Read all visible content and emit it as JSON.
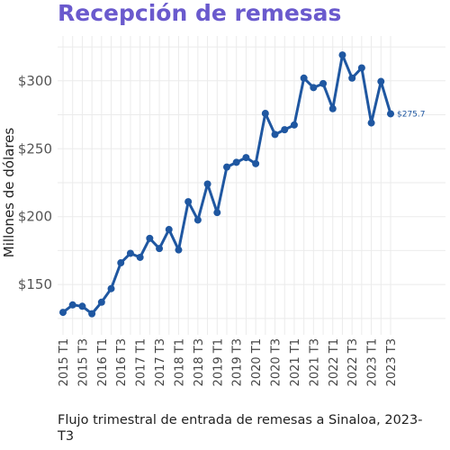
{
  "title": "Recepción de remesas",
  "caption": "Flujo trimestral de entrada de remesas a Sinaloa, 2023-T3",
  "colors": {
    "title": "#6a5acd",
    "series": "#1f57a1",
    "grid": "#ebebeb"
  },
  "chart_data": {
    "type": "line",
    "ylabel": "Millones de dólares",
    "xlabel": "",
    "ylim": [
      113,
      333
    ],
    "y_ticks": [
      150,
      200,
      250,
      300
    ],
    "y_tick_labels": [
      "$150",
      "$200",
      "$250",
      "$300"
    ],
    "x_tick_labels": [
      "2015 T1",
      "2015 T3",
      "2016 T1",
      "2016 T3",
      "2017 T1",
      "2017 T3",
      "2018 T1",
      "2018 T3",
      "2019 T1",
      "2019 T3",
      "2020 T1",
      "2020 T3",
      "2021 T1",
      "2021 T3",
      "2022 T1",
      "2022 T3",
      "2023 T1",
      "2023 T3"
    ],
    "grid": true,
    "x": [
      "2015 T1",
      "2015 T2",
      "2015 T3",
      "2015 T4",
      "2016 T1",
      "2016 T2",
      "2016 T3",
      "2016 T4",
      "2017 T1",
      "2017 T2",
      "2017 T3",
      "2017 T4",
      "2018 T1",
      "2018 T2",
      "2018 T3",
      "2018 T4",
      "2019 T1",
      "2019 T2",
      "2019 T3",
      "2019 T4",
      "2020 T1",
      "2020 T2",
      "2020 T3",
      "2020 T4",
      "2021 T1",
      "2021 T2",
      "2021 T3",
      "2021 T4",
      "2022 T1",
      "2022 T2",
      "2022 T3",
      "2022 T4",
      "2023 T1",
      "2023 T2",
      "2023 T3"
    ],
    "series": [
      {
        "values": [
          129.5,
          135,
          134,
          128.5,
          137,
          147,
          166,
          173,
          170,
          184,
          176.5,
          190.5,
          175.5,
          211,
          197.5,
          224,
          203,
          236.5,
          240,
          243.5,
          239,
          276,
          260.5,
          264,
          267.5,
          302,
          295,
          298,
          279.5,
          319,
          302,
          309.5,
          269,
          299.5,
          275.7
        ]
      }
    ],
    "end_label": "$275.7"
  }
}
